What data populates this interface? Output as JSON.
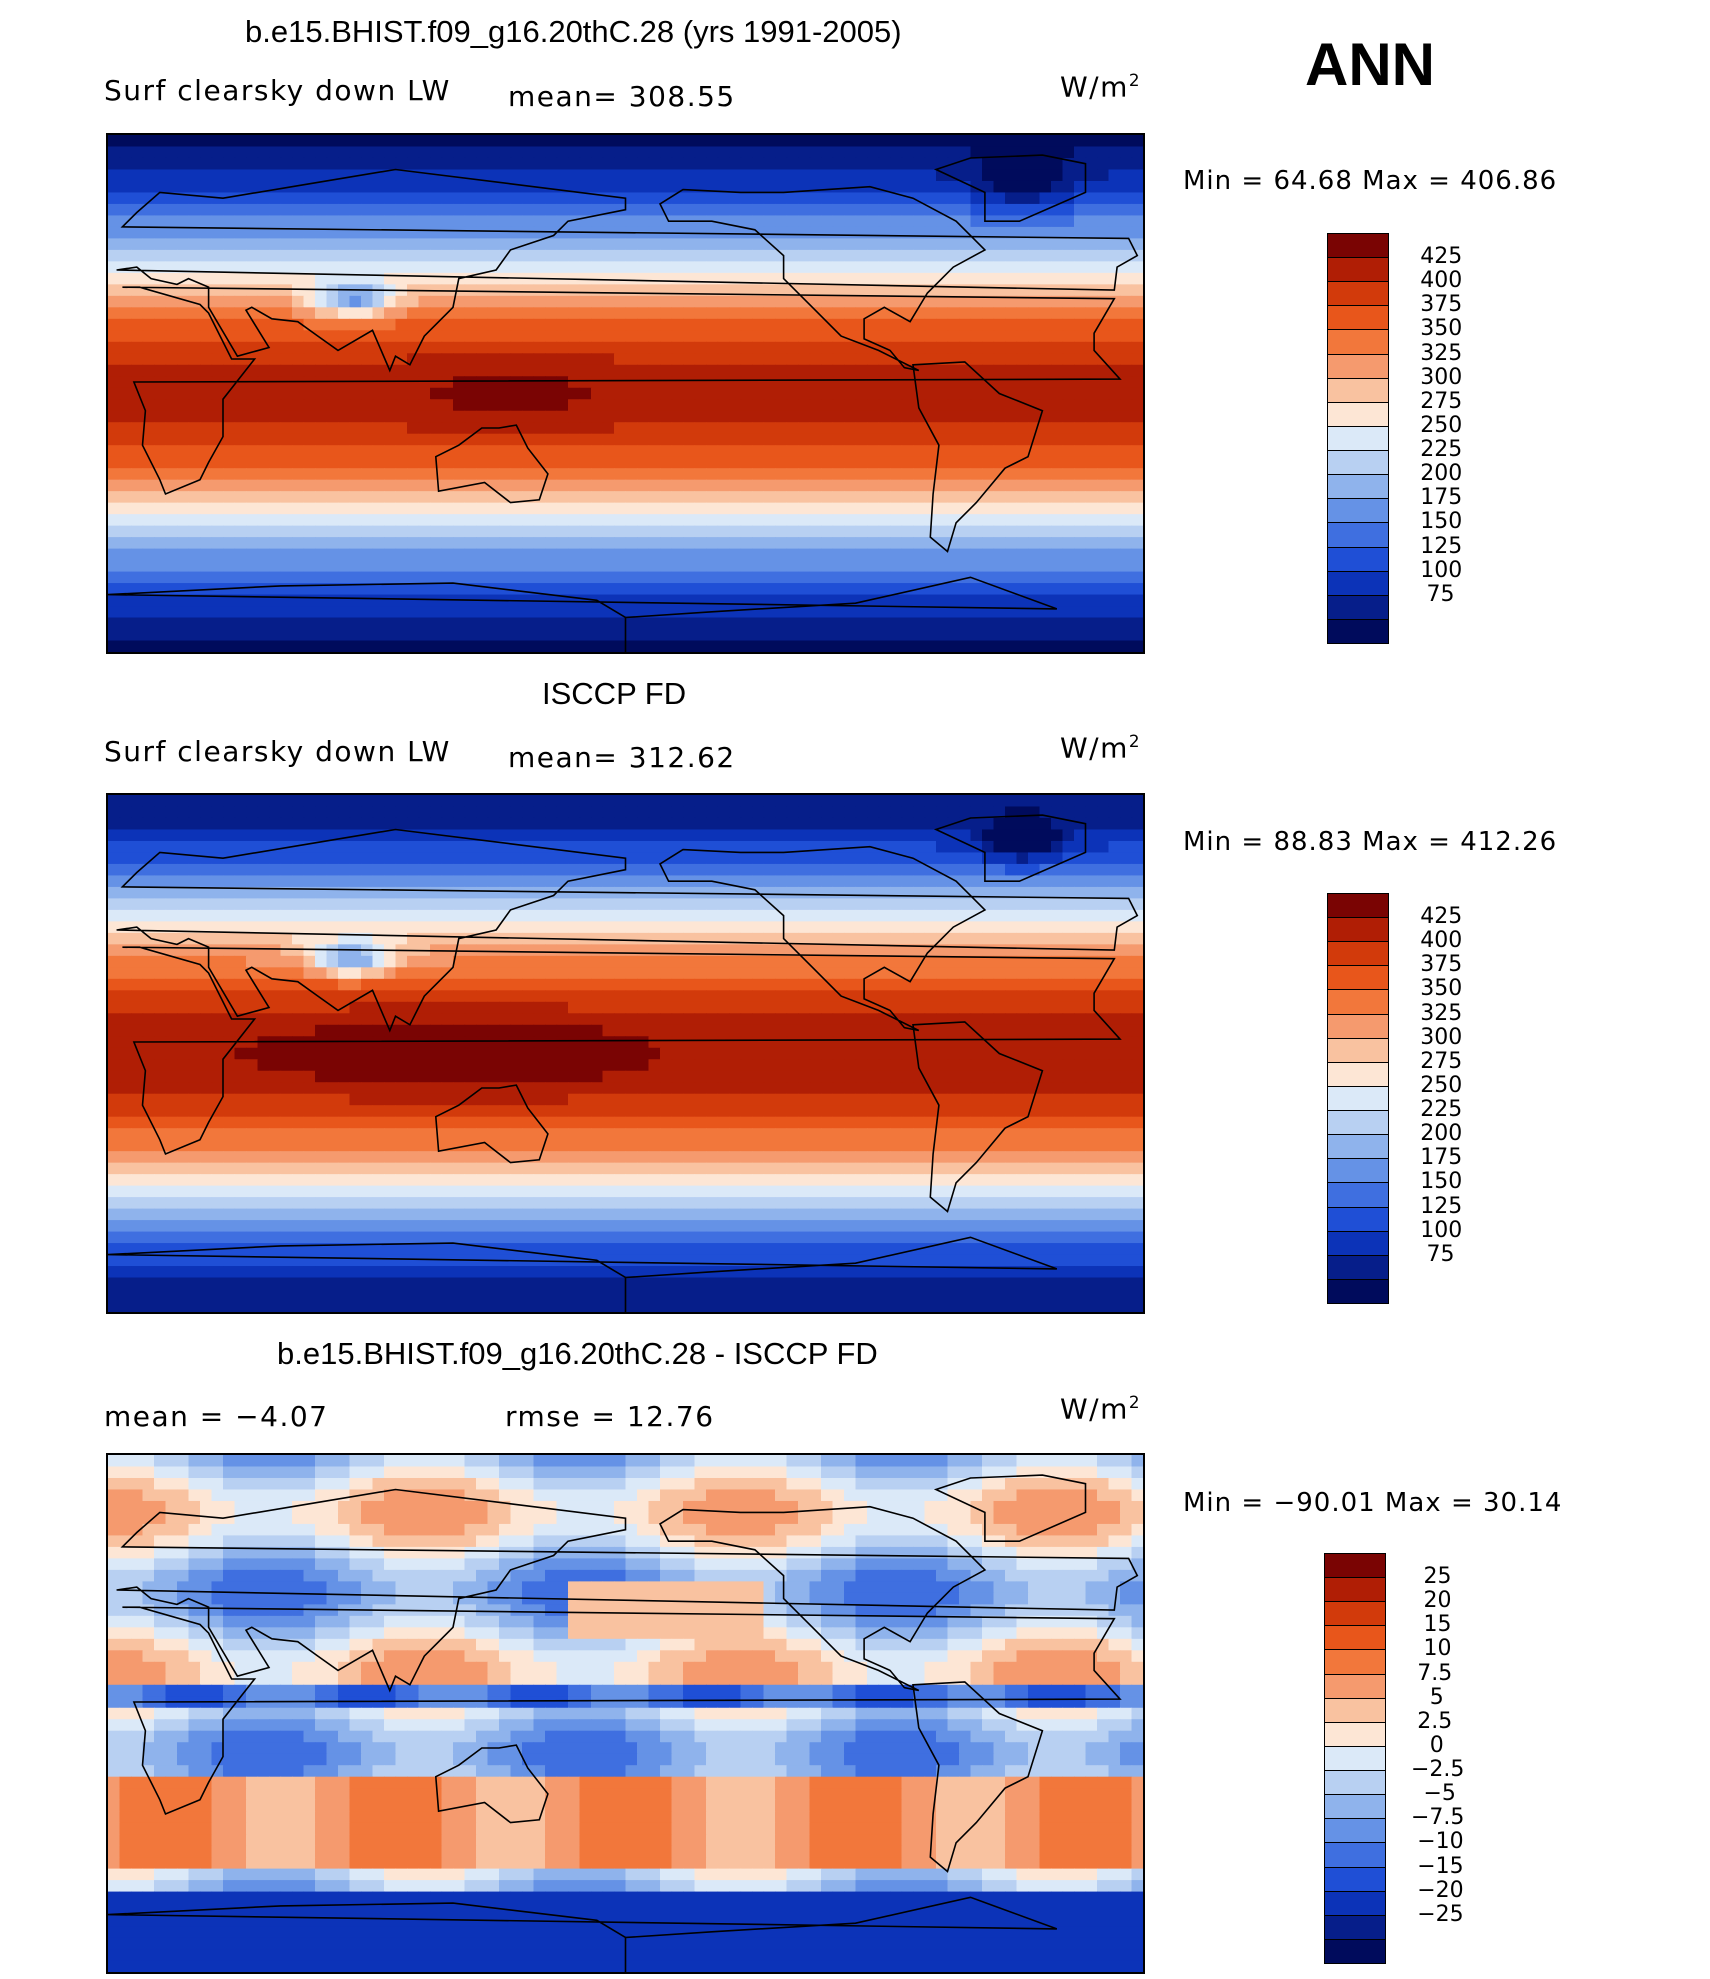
{
  "season_label": "ANN",
  "panels": [
    {
      "title": "b.e15.BHIST.f09_g16.20thC.28 (yrs 1991-2005)",
      "left_label": "Surf clearsky down LW",
      "middle_label": "mean= 308.55",
      "units": "W/m",
      "units_sup": "2",
      "min_max": "Min =   64.68 Max = 406.86",
      "kind": "model"
    },
    {
      "title": "ISCCP FD",
      "left_label": "Surf clearsky down LW",
      "middle_label": "mean= 312.62",
      "units": "W/m",
      "units_sup": "2",
      "min_max": "Min =   88.83 Max = 412.26",
      "kind": "obs"
    },
    {
      "title": "b.e15.BHIST.f09_g16.20thC.28 - ISCCP FD",
      "left_label": "mean =   −4.07",
      "middle_label": "rmse =   12.76",
      "units": "W/m",
      "units_sup": "2",
      "min_max": "Min = −90.01 Max =   30.14",
      "kind": "diff"
    }
  ],
  "chart_data": [
    {
      "type": "heatmap",
      "title": "b.e15.BHIST.f09_g16.20thC.28 (yrs 1991-2005)",
      "variable": "Surf clearsky down LW",
      "mean": 308.55,
      "units": "W/m2",
      "min": 64.68,
      "max": 406.86,
      "colorbar_levels": [
        425,
        400,
        375,
        350,
        325,
        300,
        275,
        250,
        225,
        200,
        175,
        150,
        125,
        100,
        75
      ]
    },
    {
      "type": "heatmap",
      "title": "ISCCP FD",
      "variable": "Surf clearsky down LW",
      "mean": 312.62,
      "units": "W/m2",
      "min": 88.83,
      "max": 412.26,
      "colorbar_levels": [
        425,
        400,
        375,
        350,
        325,
        300,
        275,
        250,
        225,
        200,
        175,
        150,
        125,
        100,
        75
      ]
    },
    {
      "type": "heatmap",
      "title": "b.e15.BHIST.f09_g16.20thC.28 - ISCCP FD",
      "mean": -4.07,
      "rmse": 12.76,
      "units": "W/m2",
      "min": -90.01,
      "max": 30.14,
      "colorbar_levels": [
        "25",
        "20",
        "15",
        "10",
        "7.5",
        "5",
        "2.5",
        "0",
        "−2.5",
        "−5",
        "−7.5",
        "−10",
        "−15",
        "−20",
        "−25"
      ]
    }
  ],
  "colorbar_colors": [
    "#7a0403",
    "#b01e05",
    "#d23a0b",
    "#e8561b",
    "#f2773b",
    "#f59a6e",
    "#f9c2a0",
    "#fde6d5",
    "#dbe9f8",
    "#b8d0f2",
    "#8fb3ec",
    "#6592e6",
    "#3f6fe0",
    "#1f4fd6",
    "#0c33b8",
    "#061e8a",
    "#000b5c"
  ]
}
